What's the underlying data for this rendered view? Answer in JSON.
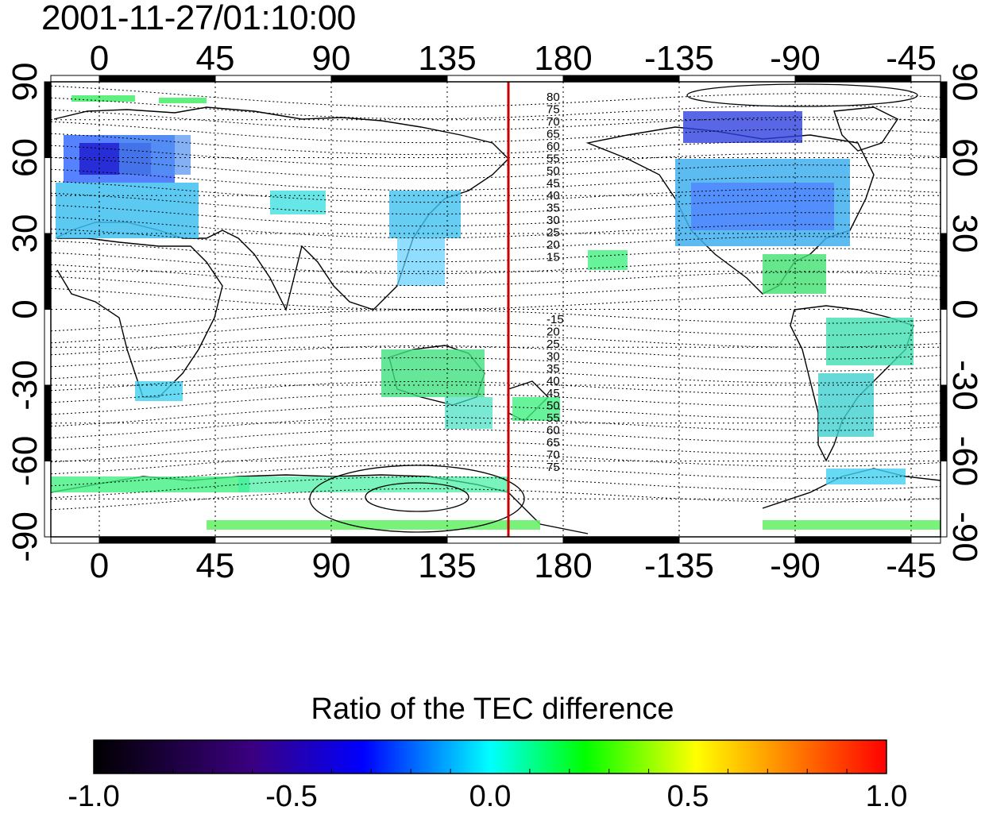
{
  "title": "2001-11-27/01:10:00",
  "map": {
    "x_ticks": [
      "0",
      "45",
      "90",
      "135",
      "180",
      "-135",
      "-90",
      "-45"
    ],
    "y_ticks_left": [
      "90",
      "60",
      "30",
      "0",
      "-30",
      "-60",
      "-90"
    ],
    "y_ticks_right": [
      "90",
      "60",
      "30",
      "0",
      "-30",
      "-60",
      "-90"
    ],
    "contour_labels_north": [
      "80",
      "75",
      "70",
      "65",
      "60",
      "55",
      "50",
      "45",
      "40",
      "35",
      "30",
      "25",
      "20",
      "15"
    ],
    "contour_labels_south": [
      "-15",
      "20",
      "25",
      "30",
      "35",
      "40",
      "45",
      "50",
      "55",
      "60",
      "65",
      "70",
      "75"
    ],
    "marker_line_color": "#cc0000",
    "marker_line_longitude": 165
  },
  "colorbar": {
    "title": "Ratio of the TEC difference",
    "ticks": [
      "-1.0",
      "-0.5",
      "0.0",
      "0.5",
      "1.0"
    ],
    "range": [
      -1.0,
      1.0
    ],
    "colors": [
      "#000000",
      "#3a0080",
      "#0000ff",
      "#00ffff",
      "#00ff00",
      "#ffff00",
      "#ff0000"
    ]
  }
}
